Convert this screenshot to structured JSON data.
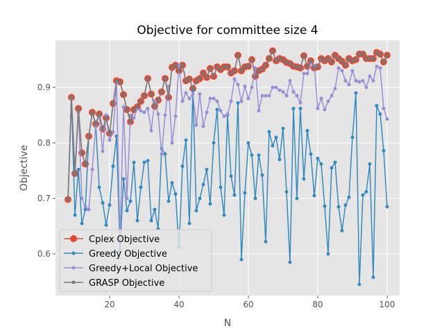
{
  "chart_data": {
    "type": "line",
    "title": "Objective for committee size 4",
    "xlabel": "N",
    "ylabel": "Objective",
    "xlim": [
      4.4,
      103.6
    ],
    "ylim": [
      0.525,
      0.985
    ],
    "x_ticks": [
      20,
      40,
      60,
      80,
      100
    ],
    "y_ticks": [
      0.6,
      0.7,
      0.8,
      0.9
    ],
    "grid": true,
    "legend_position": "lower-left",
    "x": [
      8,
      9,
      10,
      11,
      12,
      13,
      14,
      15,
      16,
      17,
      18,
      19,
      20,
      21,
      22,
      23,
      24,
      25,
      26,
      27,
      28,
      29,
      30,
      31,
      32,
      33,
      34,
      35,
      36,
      37,
      38,
      39,
      40,
      41,
      42,
      43,
      44,
      45,
      46,
      47,
      48,
      49,
      50,
      51,
      52,
      53,
      54,
      55,
      56,
      57,
      58,
      59,
      60,
      61,
      62,
      63,
      64,
      65,
      66,
      67,
      68,
      69,
      70,
      71,
      72,
      73,
      74,
      75,
      76,
      77,
      78,
      79,
      80,
      81,
      82,
      83,
      84,
      85,
      86,
      87,
      88,
      89,
      90,
      91,
      92,
      93,
      94,
      95,
      96,
      97,
      98,
      99,
      100
    ],
    "series": [
      {
        "name": "Cplex Objective",
        "color": "#E24A33",
        "values": [
          0.698,
          0.882,
          0.745,
          0.862,
          0.782,
          0.762,
          0.812,
          0.855,
          0.834,
          0.852,
          0.825,
          0.845,
          0.817,
          0.871,
          0.912,
          0.91,
          0.887,
          0.86,
          0.838,
          0.86,
          0.865,
          0.875,
          0.885,
          0.916,
          0.888,
          0.866,
          0.877,
          0.892,
          0.916,
          0.882,
          0.936,
          0.94,
          0.93,
          0.94,
          0.912,
          0.915,
          0.898,
          0.912,
          0.916,
          0.926,
          0.918,
          0.934,
          0.92,
          0.937,
          0.932,
          0.937,
          0.937,
          0.926,
          0.93,
          0.958,
          0.93,
          0.937,
          0.938,
          0.95,
          0.92,
          0.93,
          0.933,
          0.94,
          0.952,
          0.966,
          0.948,
          0.952,
          0.95,
          0.945,
          0.943,
          0.938,
          0.937,
          0.935,
          0.957,
          0.938,
          0.948,
          0.935,
          0.937,
          0.952,
          0.948,
          0.952,
          0.946,
          0.958,
          0.952,
          0.947,
          0.94,
          0.952,
          0.948,
          0.95,
          0.96,
          0.96,
          0.952,
          0.952,
          0.952,
          0.963,
          0.96,
          0.946,
          0.958
        ]
      },
      {
        "name": "Greedy Objective",
        "color": "#348ABD",
        "values": [
          0.698,
          0.882,
          0.67,
          0.752,
          0.655,
          0.68,
          0.812,
          0.855,
          0.832,
          0.72,
          0.692,
          0.652,
          0.688,
          0.758,
          0.812,
          0.605,
          0.735,
          0.678,
          0.695,
          0.765,
          0.66,
          0.72,
          0.765,
          0.768,
          0.66,
          0.68,
          0.645,
          0.79,
          0.78,
          0.695,
          0.728,
          0.708,
          0.612,
          0.758,
          0.805,
          0.655,
          0.895,
          0.678,
          0.7,
          0.725,
          0.752,
          0.69,
          0.8,
          0.86,
          0.72,
          0.67,
          0.85,
          0.74,
          0.706,
          0.872,
          0.59,
          0.71,
          0.8,
          0.778,
          0.7,
          0.778,
          0.742,
          0.622,
          0.82,
          0.795,
          0.81,
          0.77,
          0.826,
          0.712,
          0.585,
          0.862,
          0.7,
          0.862,
          0.735,
          0.822,
          0.78,
          0.705,
          0.772,
          0.762,
          0.686,
          0.6,
          0.755,
          0.765,
          0.685,
          0.642,
          0.688,
          0.702,
          0.81,
          0.89,
          0.545,
          0.706,
          0.712,
          0.762,
          0.558,
          0.867,
          0.852,
          0.786,
          0.685
        ]
      },
      {
        "name": "Greedy+Local Objective",
        "color": "#988ED5",
        "values": [
          0.698,
          0.88,
          0.745,
          0.855,
          0.7,
          0.685,
          0.68,
          0.752,
          0.832,
          0.85,
          0.785,
          0.85,
          0.805,
          0.82,
          0.908,
          0.625,
          0.865,
          0.7,
          0.85,
          0.845,
          0.862,
          0.858,
          0.855,
          0.862,
          0.822,
          0.875,
          0.852,
          0.78,
          0.85,
          0.902,
          0.8,
          0.848,
          0.94,
          0.875,
          0.89,
          0.88,
          0.888,
          0.832,
          0.888,
          0.83,
          0.855,
          0.88,
          0.88,
          0.875,
          0.858,
          0.848,
          0.852,
          0.875,
          0.915,
          0.905,
          0.875,
          0.902,
          0.88,
          0.9,
          0.935,
          0.858,
          0.885,
          0.885,
          0.885,
          0.9,
          0.9,
          0.895,
          0.892,
          0.885,
          0.912,
          0.892,
          0.885,
          0.872,
          0.925,
          0.925,
          0.945,
          0.94,
          0.862,
          0.88,
          0.86,
          0.875,
          0.885,
          0.898,
          0.935,
          0.93,
          0.912,
          0.905,
          0.93,
          0.912,
          0.91,
          0.912,
          0.9,
          0.92,
          0.912,
          0.938,
          0.935,
          0.862,
          0.843
        ]
      },
      {
        "name": "GRASP Objective",
        "color": "#777777",
        "values": [
          0.698,
          0.882,
          0.745,
          0.862,
          0.782,
          0.762,
          0.812,
          0.855,
          0.834,
          0.852,
          0.825,
          0.845,
          0.817,
          0.871,
          0.912,
          0.91,
          0.887,
          0.86,
          0.838,
          0.86,
          0.865,
          0.875,
          0.885,
          0.916,
          0.888,
          0.866,
          0.877,
          0.892,
          0.916,
          0.882,
          0.936,
          0.94,
          0.93,
          0.94,
          0.912,
          0.915,
          0.898,
          0.912,
          0.916,
          0.926,
          0.918,
          0.934,
          0.92,
          0.937,
          0.932,
          0.937,
          0.937,
          0.926,
          0.93,
          0.958,
          0.93,
          0.937,
          0.938,
          0.95,
          0.92,
          0.93,
          0.933,
          0.94,
          0.952,
          0.966,
          0.948,
          0.952,
          0.95,
          0.945,
          0.943,
          0.938,
          0.937,
          0.935,
          0.957,
          0.938,
          0.948,
          0.935,
          0.937,
          0.952,
          0.948,
          0.952,
          0.946,
          0.958,
          0.952,
          0.947,
          0.94,
          0.952,
          0.948,
          0.95,
          0.96,
          0.96,
          0.952,
          0.952,
          0.952,
          0.963,
          0.96,
          0.946,
          0.958
        ]
      }
    ],
    "colors": {
      "background": "#E5E5E5",
      "grid": "#FFFFFF"
    }
  }
}
